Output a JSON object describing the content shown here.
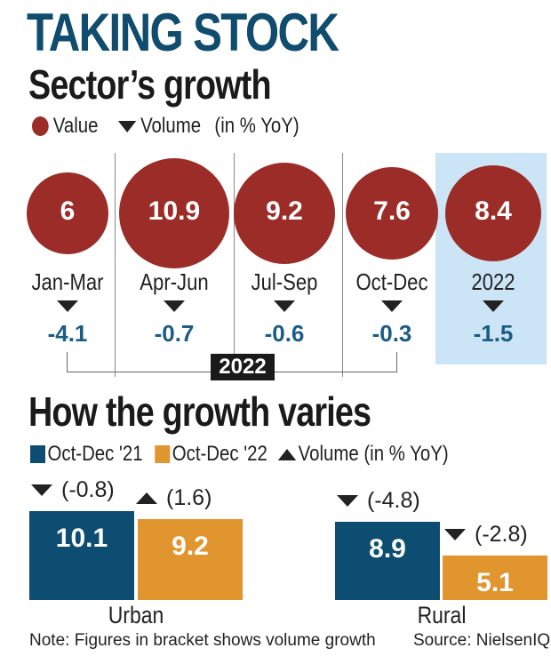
{
  "title": "TAKING STOCK",
  "section1": {
    "heading": "Sector’s growth",
    "legend": {
      "value_label": "Value",
      "volume_label": "Volume",
      "unit": "(in % YoY)"
    },
    "bracket_label": "2022"
  },
  "section2": {
    "heading": "How the growth varies",
    "legend": {
      "series1": "Oct-Dec '21",
      "series2": "Oct-Dec '22",
      "volume_label": "Volume (in % YoY)"
    }
  },
  "note": "Note: Figures in bracket shows volume growth",
  "source": "Source: NielsenIQ",
  "colors": {
    "title": "#0f4c6e",
    "bubble": "#9b2c27",
    "volume_text": "#1b5c84",
    "series1": "#0e4d72",
    "series2": "#e0952f",
    "highlight": "#cce5f6"
  },
  "chart_data": [
    {
      "type": "bubble",
      "categories": [
        "Jan-Mar",
        "Apr-Jun",
        "Jul-Sep",
        "Oct-Dec",
        "2022"
      ],
      "series": [
        {
          "name": "Value",
          "values": [
            6,
            10.9,
            9.2,
            7.6,
            8.4
          ],
          "labels": [
            "6",
            "10.9",
            "9.2",
            "7.6",
            "8.4"
          ]
        },
        {
          "name": "Volume",
          "values": [
            -4.1,
            -0.7,
            -0.6,
            -0.3,
            -1.5
          ],
          "labels": [
            "-4.1",
            "-0.7",
            "-0.6",
            "-0.3",
            "-1.5"
          ],
          "direction": [
            "down",
            "down",
            "down",
            "down",
            "down"
          ]
        }
      ],
      "highlighted_category": "2022"
    },
    {
      "type": "bar",
      "categories": [
        "Urban",
        "Rural"
      ],
      "series": [
        {
          "name": "Oct-Dec '21",
          "values": [
            10.1,
            8.9
          ],
          "labels": [
            "10.1",
            "8.9"
          ],
          "volume": [
            "(-0.8)",
            "(-4.8)"
          ],
          "volume_direction": [
            "down",
            "down"
          ]
        },
        {
          "name": "Oct-Dec '22",
          "values": [
            9.2,
            5.1
          ],
          "labels": [
            "9.2",
            "5.1"
          ],
          "volume": [
            "(1.6)",
            "(-2.8)"
          ],
          "volume_direction": [
            "up",
            "down"
          ]
        }
      ]
    }
  ]
}
